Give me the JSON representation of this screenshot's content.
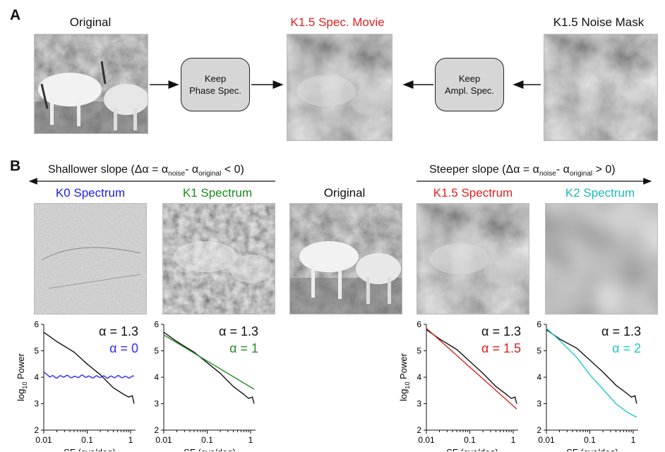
{
  "panel_a": {
    "letter": "A",
    "title_original": "Original",
    "title_movie": "K1.5 Spec. Movie",
    "title_mask": "K1.5 Noise Mask",
    "box_phase": "Keep\nPhase Spec.",
    "box_ampl": "Keep\nAmpl. Spec."
  },
  "panel_b": {
    "letter": "B",
    "shallower": "Shallower slope (Δα = α",
    "shallower_sub1": "noise",
    "shallower_mid": "- α",
    "shallower_sub2": "original",
    "shallower_end": "< 0)",
    "steeper": "Steeper slope (Δα = α",
    "steeper_sub1": "noise",
    "steeper_mid": "- α",
    "steeper_sub2": "original",
    "steeper_end": "> 0)",
    "titles": [
      "K0 Spectrum",
      "K1 Spectrum",
      "Original",
      "K1.5 Spectrum",
      "K2 Spectrum"
    ],
    "title_colors": [
      "#2020e0",
      "#1a8a1a",
      "#111111",
      "#e02020",
      "#20c0c0"
    ]
  },
  "colors": {
    "black": "#111111",
    "blue": "#2a2aff",
    "green": "#2a8a2a",
    "red": "#e02020",
    "cyan": "#20c8c8"
  },
  "chart_data": [
    {
      "type": "line",
      "ylabel_main": "log",
      "ylabel_sub": "10",
      "ylabel_end": " Power",
      "xlabel": "SF (cyc/deg)",
      "xticks": [
        "0.01",
        "0.1",
        "1"
      ],
      "yticks": [
        "2",
        "3",
        "4",
        "5",
        "6"
      ],
      "ylim": [
        2,
        6
      ],
      "xlim": [
        0.01,
        1.3
      ],
      "xscale": "log",
      "alpha_ref": "α = 1.3",
      "alpha_noise": "α = 0",
      "series": [
        {
          "color": "black",
          "x": [
            0.01,
            0.02,
            0.05,
            0.1,
            0.2,
            0.4,
            0.7,
            0.9,
            1.1,
            1.2
          ],
          "y": [
            5.7,
            5.35,
            4.95,
            4.5,
            4.1,
            3.6,
            3.35,
            3.25,
            3.3,
            3.0
          ]
        },
        {
          "color": "blue",
          "x": [
            0.01,
            0.013,
            0.02,
            0.03,
            0.05,
            0.08,
            0.12,
            0.2,
            0.3,
            0.5,
            0.8,
            1.2
          ],
          "y": [
            4.2,
            4.05,
            4.0,
            4.05,
            4.0,
            4.05,
            4.0,
            4.03,
            4.0,
            4.03,
            4.0,
            4.02
          ],
          "wavy": true
        }
      ]
    },
    {
      "type": "line",
      "xlabel": "SF (cyc/deg)",
      "xticks": [
        "0.01",
        "0.1",
        "1"
      ],
      "yticks": [
        "2",
        "3",
        "4",
        "5",
        "6"
      ],
      "ylim": [
        2,
        6
      ],
      "xlim": [
        0.01,
        1.3
      ],
      "xscale": "log",
      "alpha_ref": "α = 1.3",
      "alpha_noise": "α = 1",
      "series": [
        {
          "color": "black",
          "x": [
            0.01,
            0.02,
            0.05,
            0.1,
            0.2,
            0.4,
            0.7,
            0.9,
            1.1,
            1.2
          ],
          "y": [
            5.7,
            5.35,
            4.95,
            4.55,
            4.15,
            3.65,
            3.35,
            3.2,
            3.25,
            3.0
          ]
        },
        {
          "color": "green",
          "x": [
            0.01,
            1.2
          ],
          "y": [
            5.6,
            3.55
          ]
        }
      ]
    },
    {
      "type": "line",
      "ylabel_main": "log",
      "ylabel_sub": "10",
      "ylabel_end": " Power",
      "xlabel": "SF (cyc/deg)",
      "xticks": [
        "0.01",
        "0.1",
        "1"
      ],
      "yticks": [
        "2",
        "3",
        "4",
        "5",
        "6"
      ],
      "ylim": [
        2,
        6
      ],
      "xlim": [
        0.01,
        1.3
      ],
      "xscale": "log",
      "alpha_ref": "α = 1.3",
      "alpha_noise": "α = 1.5",
      "series": [
        {
          "color": "black",
          "x": [
            0.01,
            0.02,
            0.05,
            0.1,
            0.2,
            0.4,
            0.7,
            0.9,
            1.1,
            1.2
          ],
          "y": [
            5.8,
            5.45,
            5.05,
            4.6,
            4.15,
            3.65,
            3.35,
            3.2,
            3.25,
            3.0
          ]
        },
        {
          "color": "red",
          "x": [
            0.01,
            1.2
          ],
          "y": [
            5.85,
            2.8
          ]
        }
      ]
    },
    {
      "type": "line",
      "xlabel": "SF (cyc/deg)",
      "xticks": [
        "0.01",
        "0.1",
        "1"
      ],
      "yticks": [
        "2",
        "3",
        "4",
        "5",
        "6"
      ],
      "ylim": [
        2,
        6
      ],
      "xlim": [
        0.01,
        1.3
      ],
      "xscale": "log",
      "alpha_ref": "α = 1.3",
      "alpha_noise": "α = 2",
      "series": [
        {
          "color": "black",
          "x": [
            0.01,
            0.02,
            0.05,
            0.1,
            0.2,
            0.4,
            0.7,
            0.9,
            1.1,
            1.2
          ],
          "y": [
            5.8,
            5.45,
            5.1,
            4.65,
            4.2,
            3.7,
            3.4,
            3.25,
            3.3,
            3.0
          ]
        },
        {
          "color": "cyan",
          "x": [
            0.01,
            0.02,
            0.05,
            0.1,
            0.2,
            0.4,
            0.7,
            1.0,
            1.2
          ],
          "y": [
            5.85,
            5.4,
            4.75,
            4.1,
            3.55,
            3.0,
            2.7,
            2.55,
            2.5
          ]
        }
      ]
    }
  ]
}
